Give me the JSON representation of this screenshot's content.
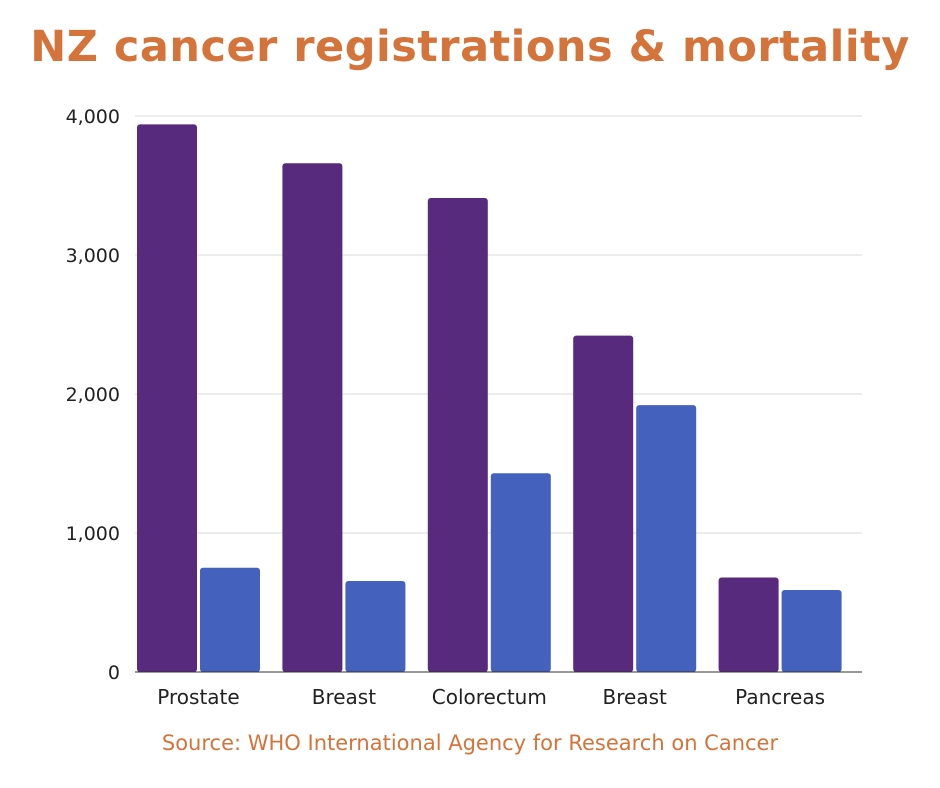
{
  "chart_data": {
    "type": "bar",
    "title": "NZ cancer registrations & mortality",
    "source": "Source: WHO International Agency for Research on Cancer",
    "categories": [
      "Prostate",
      "Breast",
      "Colorectum",
      "Breast",
      "Pancreas"
    ],
    "series": [
      {
        "values": [
          3940,
          3660,
          3410,
          2420,
          680
        ],
        "color": "#582a7e"
      },
      {
        "values": [
          750,
          655,
          1430,
          1920,
          590
        ],
        "color": "#4462bd"
      }
    ],
    "ylim": [
      0,
      4000
    ],
    "yticks": [
      0,
      1000,
      2000,
      3000,
      4000
    ],
    "ytick_labels": [
      "0",
      "1,000",
      "2,000",
      "3,000",
      "4,000"
    ],
    "xlabel": "",
    "ylabel": "",
    "grid": true,
    "legend": "none"
  }
}
